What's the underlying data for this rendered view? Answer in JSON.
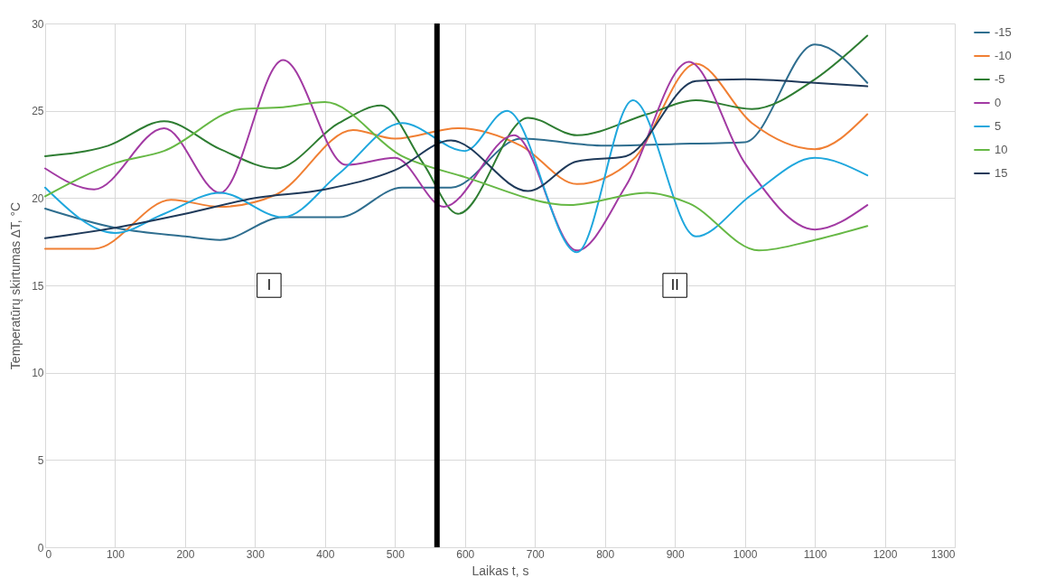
{
  "chart_data": {
    "type": "line",
    "xlabel": "Laikas t, s",
    "ylabel": "Temperatūrų skirtumas ∆T, °C",
    "xlim": [
      0,
      1300
    ],
    "xticks": [
      0,
      100,
      200,
      300,
      400,
      500,
      600,
      700,
      800,
      900,
      1000,
      1100,
      1200,
      1300
    ],
    "ylim": [
      0,
      30
    ],
    "yticks": [
      0,
      5,
      10,
      15,
      20,
      25,
      30
    ],
    "grid": true,
    "legend": "right",
    "marker": "none",
    "line_style": "solid",
    "ref_lines": [
      {
        "axis": "x",
        "value": 560,
        "color": "#000000"
      }
    ],
    "annotations": [
      {
        "text": "I",
        "x": 320,
        "y": 15
      },
      {
        "text": "II",
        "x": 900,
        "y": 15
      }
    ],
    "series": [
      {
        "name": "-15",
        "color": "#2f6e8f",
        "x": [
          0,
          100,
          200,
          250,
          340,
          420,
          510,
          580,
          680,
          800,
          900,
          1000,
          1100,
          1175
        ],
        "values": [
          19.4,
          18.3,
          17.8,
          17.6,
          18.9,
          18.9,
          20.6,
          20.6,
          23.4,
          23.0,
          23.1,
          23.2,
          28.8,
          26.6
        ]
      },
      {
        "name": "-10",
        "color": "#f07f33",
        "x": [
          0,
          70,
          180,
          250,
          330,
          440,
          500,
          590,
          680,
          760,
          840,
          930,
          1010,
          1100,
          1175
        ],
        "values": [
          17.1,
          17.1,
          19.9,
          19.5,
          20.2,
          23.9,
          23.4,
          24.0,
          23.0,
          20.8,
          22.2,
          27.7,
          24.3,
          22.8,
          24.8
        ]
      },
      {
        "name": "-5",
        "color": "#2e7d32",
        "x": [
          0,
          90,
          170,
          250,
          330,
          420,
          480,
          540,
          590,
          690,
          760,
          860,
          930,
          1010,
          1100,
          1175
        ],
        "values": [
          22.4,
          23.0,
          24.4,
          22.8,
          21.7,
          24.3,
          25.3,
          22.0,
          19.1,
          24.6,
          23.6,
          24.8,
          25.6,
          25.1,
          26.8,
          29.3
        ]
      },
      {
        "name": "0",
        "color": "#a23aa3",
        "x": [
          0,
          70,
          170,
          250,
          340,
          430,
          500,
          570,
          670,
          760,
          830,
          920,
          1000,
          1100,
          1175
        ],
        "values": [
          21.7,
          20.5,
          24.0,
          20.3,
          27.9,
          21.9,
          22.3,
          19.5,
          23.6,
          17.0,
          20.7,
          27.8,
          22.0,
          18.2,
          19.6
        ]
      },
      {
        "name": "5",
        "color": "#1fa7dd",
        "x": [
          0,
          100,
          170,
          250,
          340,
          420,
          510,
          600,
          660,
          760,
          840,
          930,
          1010,
          1100,
          1175
        ],
        "values": [
          20.6,
          18.0,
          19.1,
          20.3,
          18.9,
          21.4,
          24.3,
          22.7,
          25.0,
          16.9,
          25.6,
          17.8,
          20.2,
          22.3,
          21.3
        ]
      },
      {
        "name": "10",
        "color": "#66b845",
        "x": [
          0,
          100,
          170,
          280,
          340,
          400,
          510,
          600,
          750,
          860,
          920,
          1020,
          1100,
          1175
        ],
        "values": [
          20.1,
          22.0,
          22.7,
          25.1,
          25.2,
          25.5,
          22.4,
          21.2,
          19.6,
          20.3,
          19.7,
          17.0,
          17.6,
          18.4
        ]
      },
      {
        "name": "15",
        "color": "#1f3a5a",
        "x": [
          0,
          100,
          200,
          300,
          400,
          500,
          580,
          690,
          760,
          830,
          930,
          1000,
          1100,
          1175
        ],
        "values": [
          17.7,
          18.3,
          19.1,
          20.0,
          20.5,
          21.6,
          23.3,
          20.4,
          22.1,
          22.4,
          26.7,
          26.8,
          26.6,
          26.4
        ]
      }
    ]
  }
}
